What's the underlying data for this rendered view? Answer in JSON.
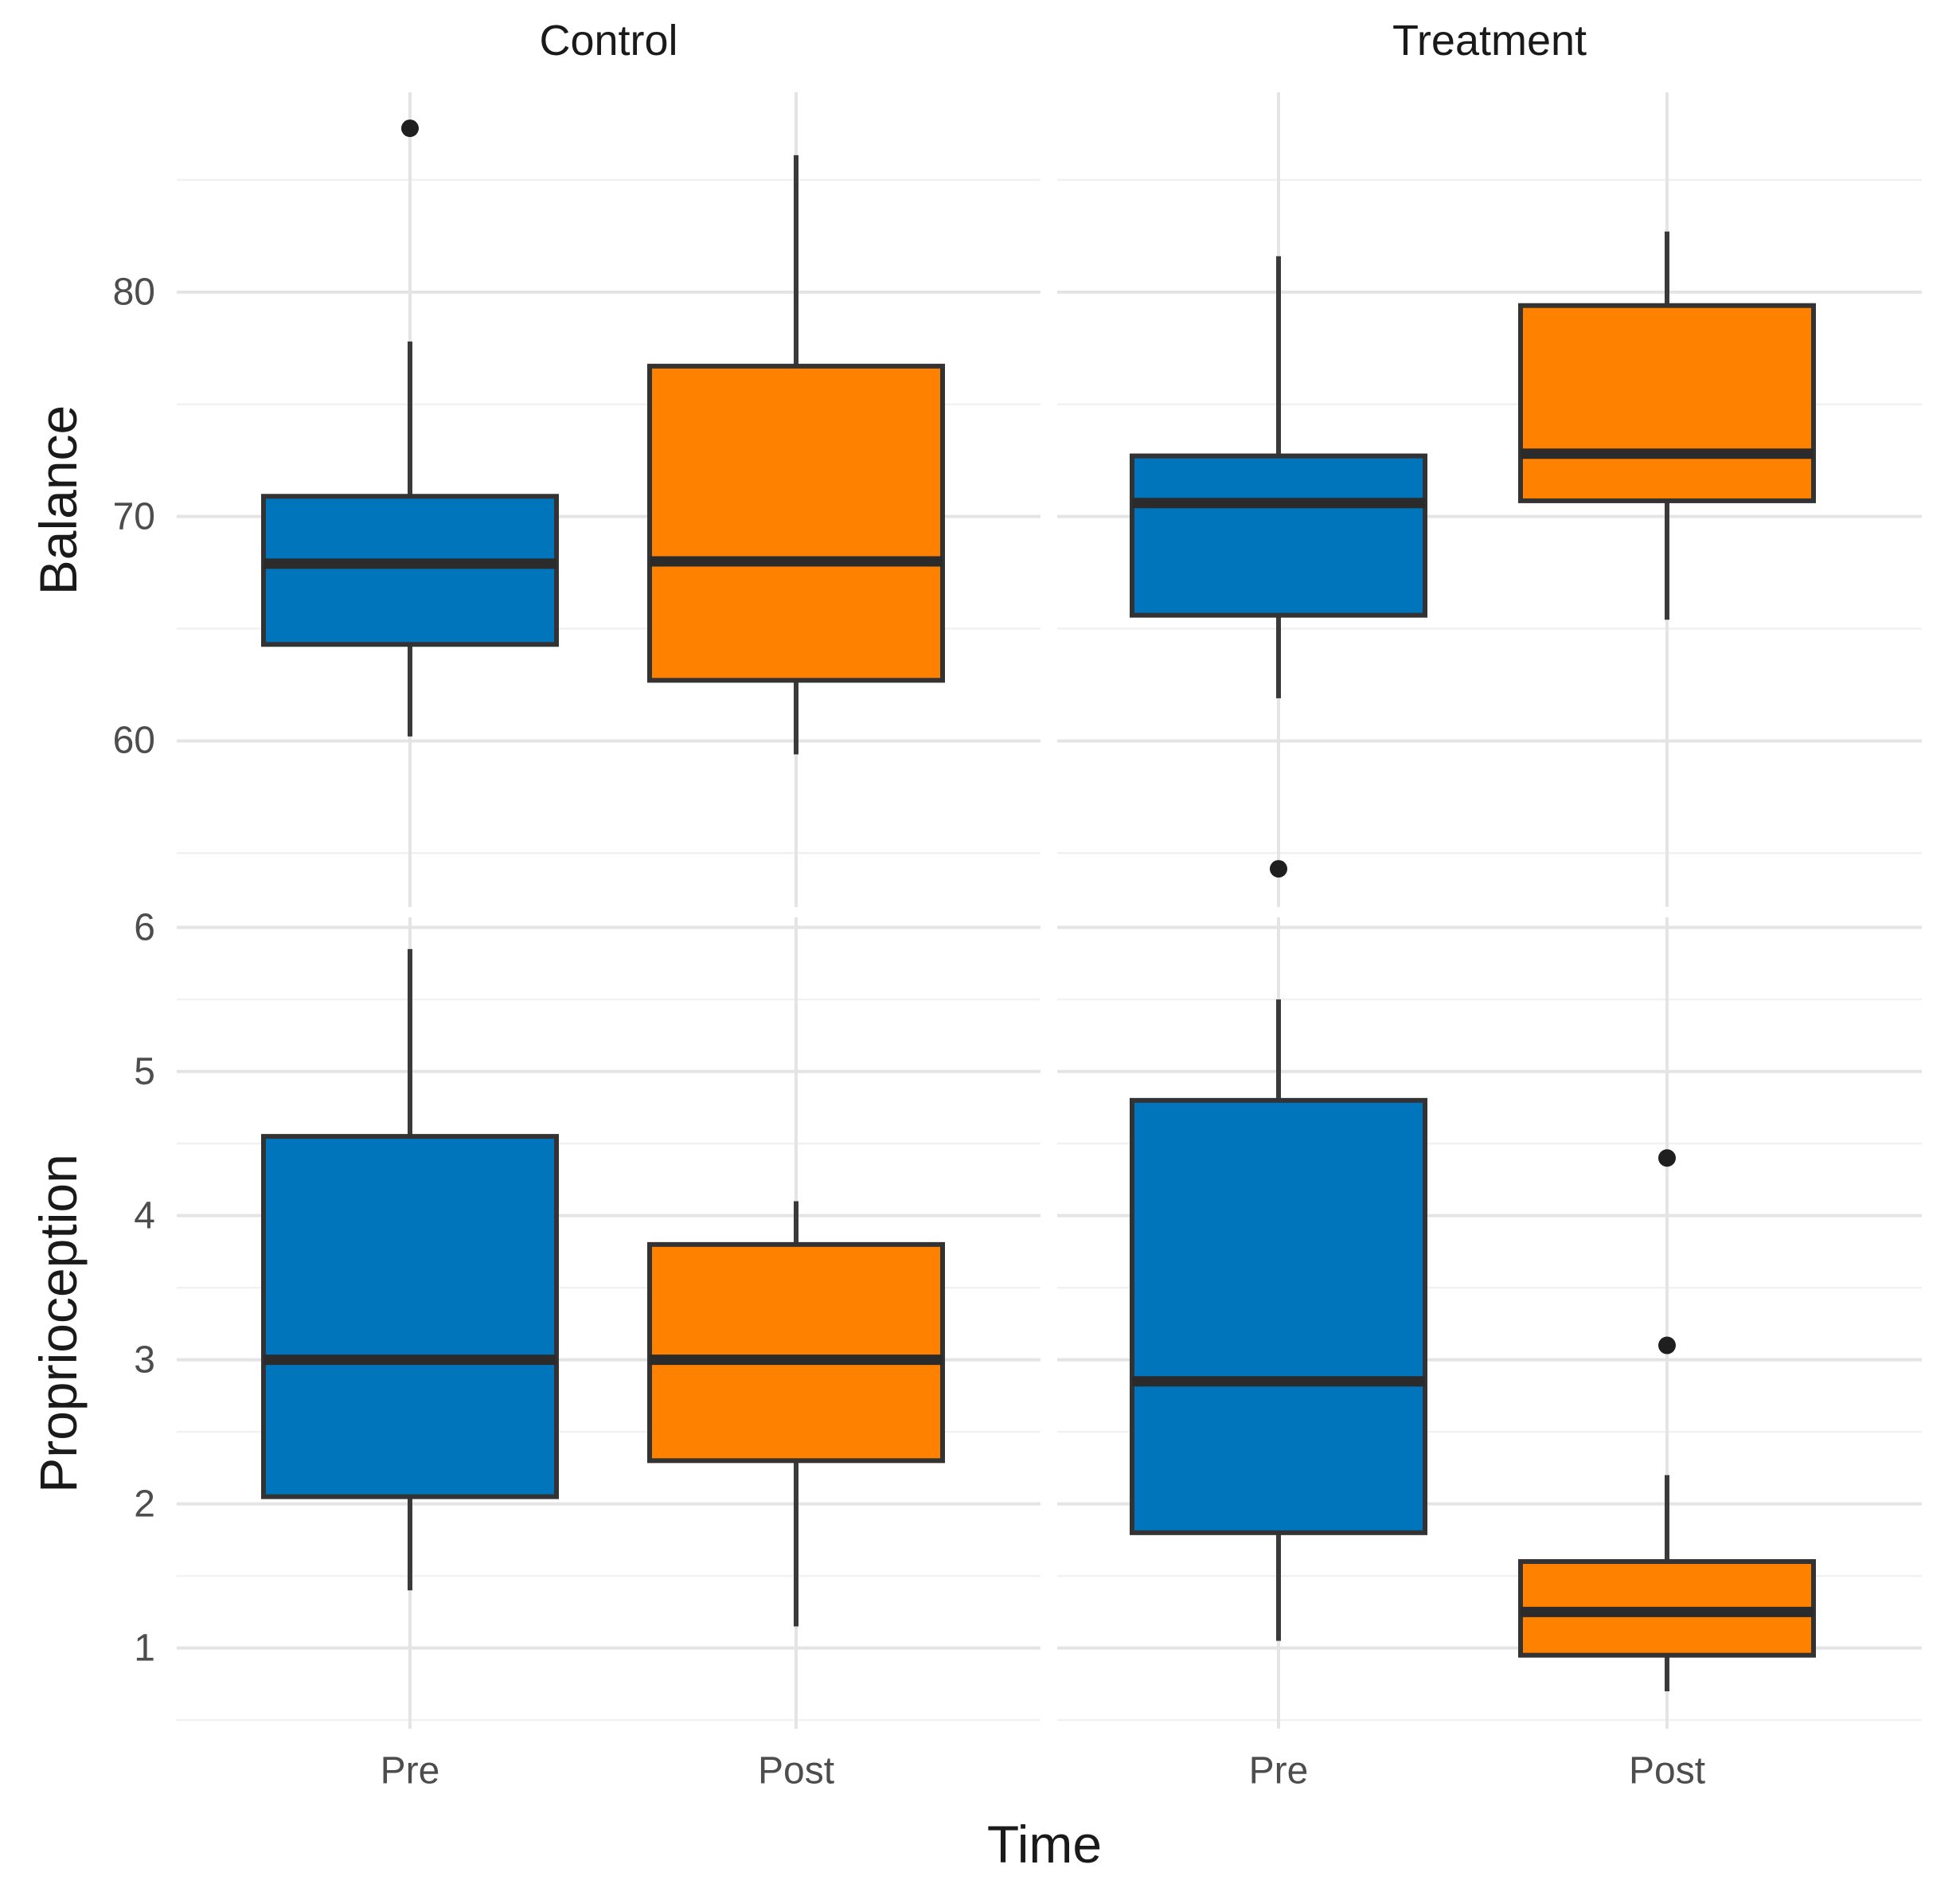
{
  "chart_data": {
    "type": "boxplot",
    "title": "",
    "facet_cols": [
      "Control",
      "Treatment"
    ],
    "x_categories": [
      "Pre",
      "Post"
    ],
    "xlabel": "Time",
    "facet_rows": [
      {
        "ylabel": "Balance",
        "ylim": [
          52.6,
          88.9
        ],
        "yticks": [
          80,
          70,
          60
        ],
        "yminor": [
          85,
          75,
          65,
          55
        ]
      },
      {
        "ylabel": "Proprioception",
        "ylim": [
          0.44,
          6.07
        ],
        "yticks": [
          6,
          5,
          4,
          3,
          2,
          1
        ],
        "yminor": [
          5.5,
          4.5,
          3.5,
          2.5,
          1.5,
          0.5
        ]
      }
    ],
    "legend_position": "none",
    "grid": "major+minor",
    "series_colors": {
      "Pre": "#0075BC",
      "Post": "#FF8100"
    },
    "boxes": [
      {
        "panel_row": "Balance",
        "panel_col": "Control",
        "time": "Pre",
        "whisker_low": 60.2,
        "q1": 64.3,
        "median": 67.9,
        "q3": 70.9,
        "whisker_high": 77.8,
        "outliers": [
          87.3
        ]
      },
      {
        "panel_row": "Balance",
        "panel_col": "Control",
        "time": "Post",
        "whisker_low": 59.4,
        "q1": 62.7,
        "median": 68.0,
        "q3": 76.7,
        "whisker_high": 86.1,
        "outliers": []
      },
      {
        "panel_row": "Balance",
        "panel_col": "Treatment",
        "time": "Pre",
        "whisker_low": 61.9,
        "q1": 65.6,
        "median": 70.6,
        "q3": 72.7,
        "whisker_high": 81.6,
        "outliers": [
          54.3
        ]
      },
      {
        "panel_row": "Balance",
        "panel_col": "Treatment",
        "time": "Post",
        "whisker_low": 65.4,
        "q1": 70.7,
        "median": 72.8,
        "q3": 79.4,
        "whisker_high": 82.7,
        "outliers": []
      },
      {
        "panel_row": "Proprioception",
        "panel_col": "Control",
        "time": "Pre",
        "whisker_low": 1.4,
        "q1": 2.05,
        "median": 3.0,
        "q3": 4.55,
        "whisker_high": 5.85,
        "outliers": []
      },
      {
        "panel_row": "Proprioception",
        "panel_col": "Control",
        "time": "Post",
        "whisker_low": 1.15,
        "q1": 2.3,
        "median": 3.0,
        "q3": 3.8,
        "whisker_high": 4.1,
        "outliers": []
      },
      {
        "panel_row": "Proprioception",
        "panel_col": "Treatment",
        "time": "Pre",
        "whisker_low": 1.05,
        "q1": 1.8,
        "median": 2.85,
        "q3": 4.8,
        "whisker_high": 5.5,
        "outliers": []
      },
      {
        "panel_row": "Proprioception",
        "panel_col": "Treatment",
        "time": "Post",
        "whisker_low": 0.7,
        "q1": 0.95,
        "median": 1.25,
        "q3": 1.6,
        "whisker_high": 2.2,
        "outliers": [
          4.4,
          3.1
        ]
      }
    ]
  }
}
